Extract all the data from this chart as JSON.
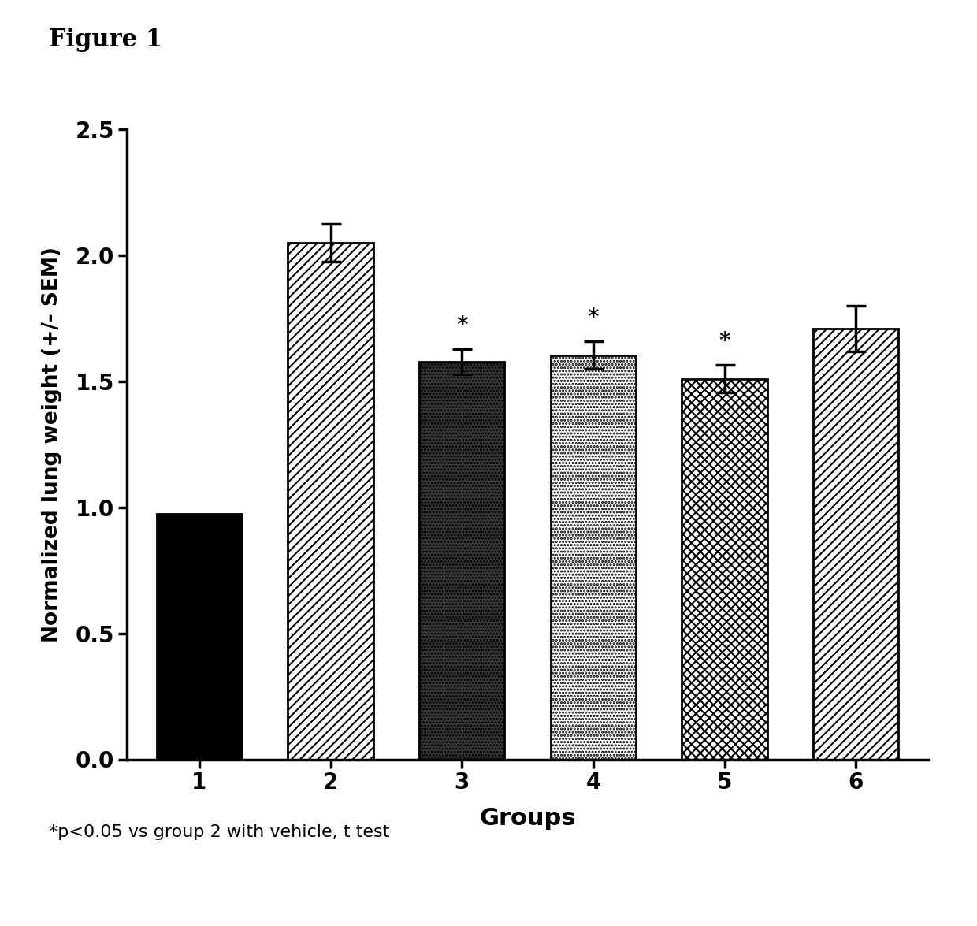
{
  "categories": [
    "1",
    "2",
    "3",
    "4",
    "5",
    "6"
  ],
  "values": [
    0.975,
    2.05,
    1.58,
    1.605,
    1.51,
    1.71
  ],
  "errors": [
    0.0,
    0.075,
    0.05,
    0.055,
    0.055,
    0.09
  ],
  "asterisks": [
    false,
    false,
    true,
    true,
    true,
    false
  ],
  "ylabel": "Normalized lung weight (+/- SEM)",
  "xlabel": "Groups",
  "title": "Figure 1",
  "ylim": [
    0,
    2.5
  ],
  "yticks": [
    0.0,
    0.5,
    1.0,
    1.5,
    2.0,
    2.5
  ],
  "footnote": "*p<0.05 vs group 2 with vehicle, t test",
  "bar_width": 0.65,
  "fig_width": 12.4,
  "fig_height": 11.75,
  "dpi": 100
}
